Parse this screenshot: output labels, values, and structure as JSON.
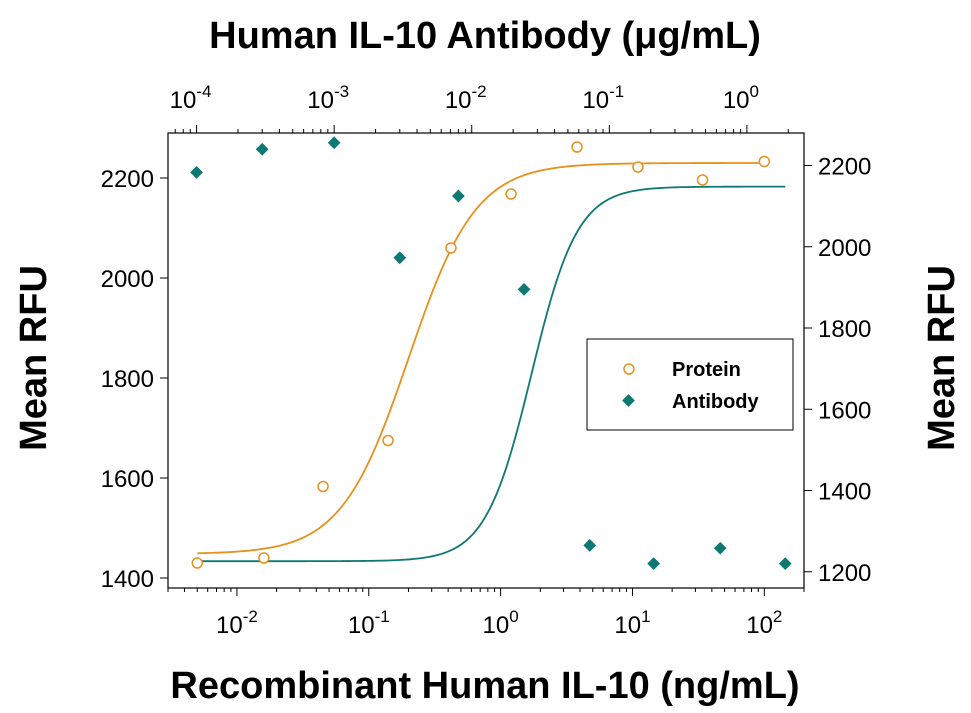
{
  "chart_data": {
    "type": "scatter",
    "title": "Human IL-10 Antibody (μg/mL)",
    "xlabel": "Recombinant Human IL-10 (ng/mL)",
    "ylabel_left": "Mean RFU",
    "ylabel_right": "Mean RFU",
    "x_scale": "log",
    "xlim": [
      0.003,
      200
    ],
    "ylim_left": [
      1380,
      2290
    ],
    "ylim_right": [
      1160,
      2280
    ],
    "x_ticks": [
      {
        "value": 0.01,
        "base": "10",
        "exp": "-2"
      },
      {
        "value": 0.1,
        "base": "10",
        "exp": "-1"
      },
      {
        "value": 1,
        "base": "10",
        "exp": "0"
      },
      {
        "value": 10,
        "base": "10",
        "exp": "1"
      },
      {
        "value": 100,
        "base": "10",
        "exp": "2"
      }
    ],
    "top_axis": {
      "scale": "log",
      "lim": [
        6.2e-05,
        2.6
      ],
      "ticks": [
        {
          "value": 0.0001,
          "base": "10",
          "exp": "-4"
        },
        {
          "value": 0.001,
          "base": "10",
          "exp": "-3"
        },
        {
          "value": 0.01,
          "base": "10",
          "exp": "-2"
        },
        {
          "value": 0.1,
          "base": "10",
          "exp": "-1"
        },
        {
          "value": 1,
          "base": "10",
          "exp": "0"
        }
      ]
    },
    "y_ticks_left": [
      "1400",
      "1600",
      "1800",
      "2000",
      "2200"
    ],
    "y_ticks_right": [
      "1200",
      "1400",
      "1600",
      "1800",
      "2000",
      "2200"
    ],
    "legend_position": "center-right",
    "series": [
      {
        "name": "Protein",
        "axis": "left",
        "marker": "open-circle",
        "color": "#E8901C",
        "x": [
          0.005,
          0.016,
          0.045,
          0.14,
          0.42,
          1.2,
          3.8,
          11,
          34,
          100
        ],
        "y": [
          1430,
          1440,
          1583,
          1675,
          2060,
          2168,
          2262,
          2222,
          2196,
          2233
        ],
        "fit": {
          "bottom": 1448,
          "top": 2230,
          "ec50": 0.2,
          "hill": 1.7
        }
      },
      {
        "name": "Antibody",
        "axis": "right",
        "axis_units": "μg/mL",
        "marker": "filled-diamond",
        "color": "#0E7872",
        "x": [
          0.0001,
          0.0003,
          0.001,
          0.003,
          0.008,
          0.024,
          0.072,
          0.21,
          0.64,
          1.9
        ],
        "y": [
          2183,
          2240,
          2256,
          1973,
          2125,
          1895,
          1265,
          1220,
          1258,
          1220
        ],
        "fit": {
          "bottom": 1226,
          "top": 2148,
          "ec50": 0.0272,
          "hill": 2.6
        }
      }
    ]
  }
}
